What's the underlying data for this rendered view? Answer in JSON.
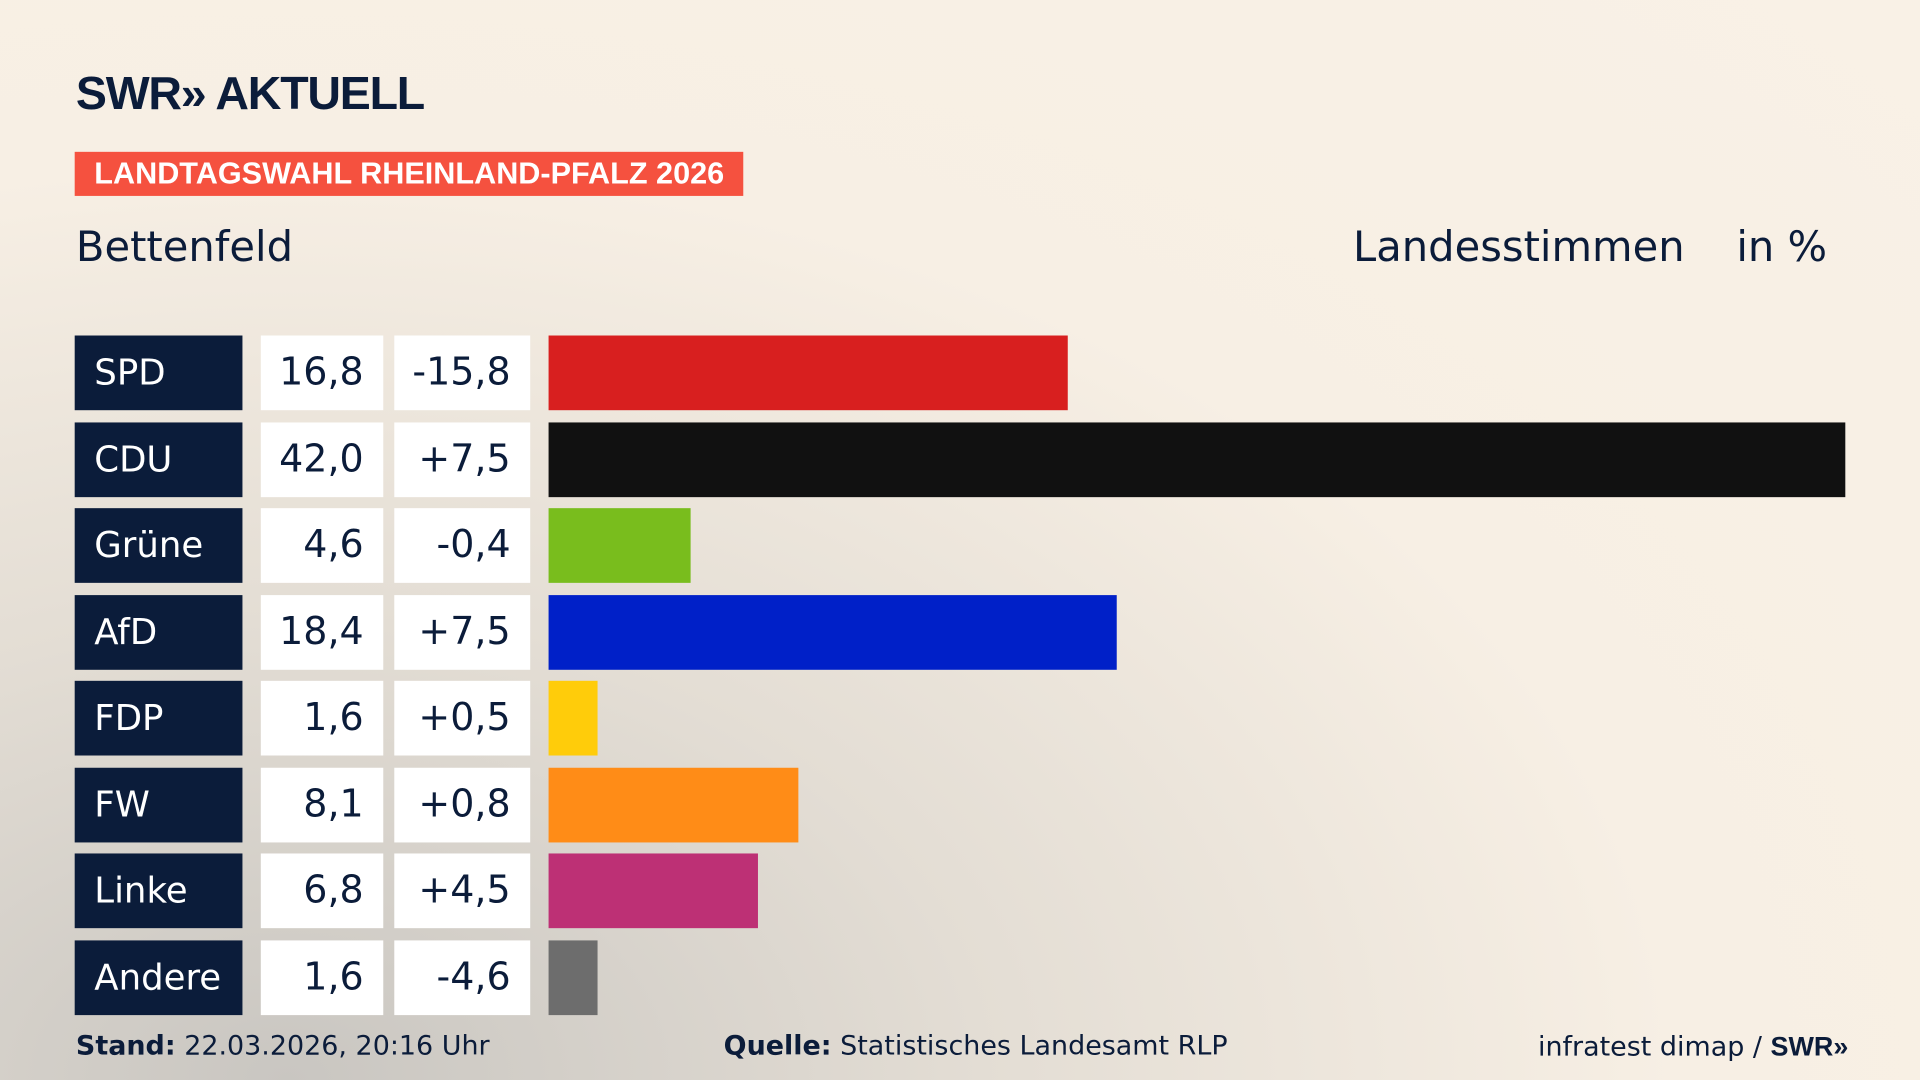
{
  "header": {
    "logo": "SWR» AKTUELL",
    "badge": "LANDTAGSWAHL RHEINLAND-PFALZ 2026",
    "place": "Bettenfeld",
    "vote_type": "Landesstimmen",
    "unit": "in %"
  },
  "chart_data": {
    "type": "bar",
    "orientation": "horizontal",
    "xlim": [
      0,
      42
    ],
    "categories": [
      "SPD",
      "CDU",
      "Grüne",
      "AfD",
      "FDP",
      "FW",
      "Linke",
      "Andere"
    ],
    "values": [
      16.8,
      42.0,
      4.6,
      18.4,
      1.6,
      8.1,
      6.8,
      1.6
    ],
    "value_labels": [
      "16,8",
      "42,0",
      "4,6",
      "18,4",
      "1,6",
      "8,1",
      "6,8",
      "1,6"
    ],
    "diff_labels": [
      "-15,8",
      "+7,5",
      "-0,4",
      "+7,5",
      "+0,5",
      "+0,8",
      "+4,5",
      "-4,6"
    ],
    "colors": [
      "#d81f1f",
      "#111111",
      "#79bd1d",
      "#0020c8",
      "#ffcc0a",
      "#ff8c17",
      "#bd3075",
      "#6d6d6d"
    ]
  },
  "footer": {
    "stand_label": "Stand:",
    "stand": "22.03.2026, 20:16 Uhr",
    "source_label": "Quelle:",
    "source": "Statistisches Landesamt RLP",
    "credit": "infratest dimap / ",
    "credit_logo": "SWR»"
  }
}
